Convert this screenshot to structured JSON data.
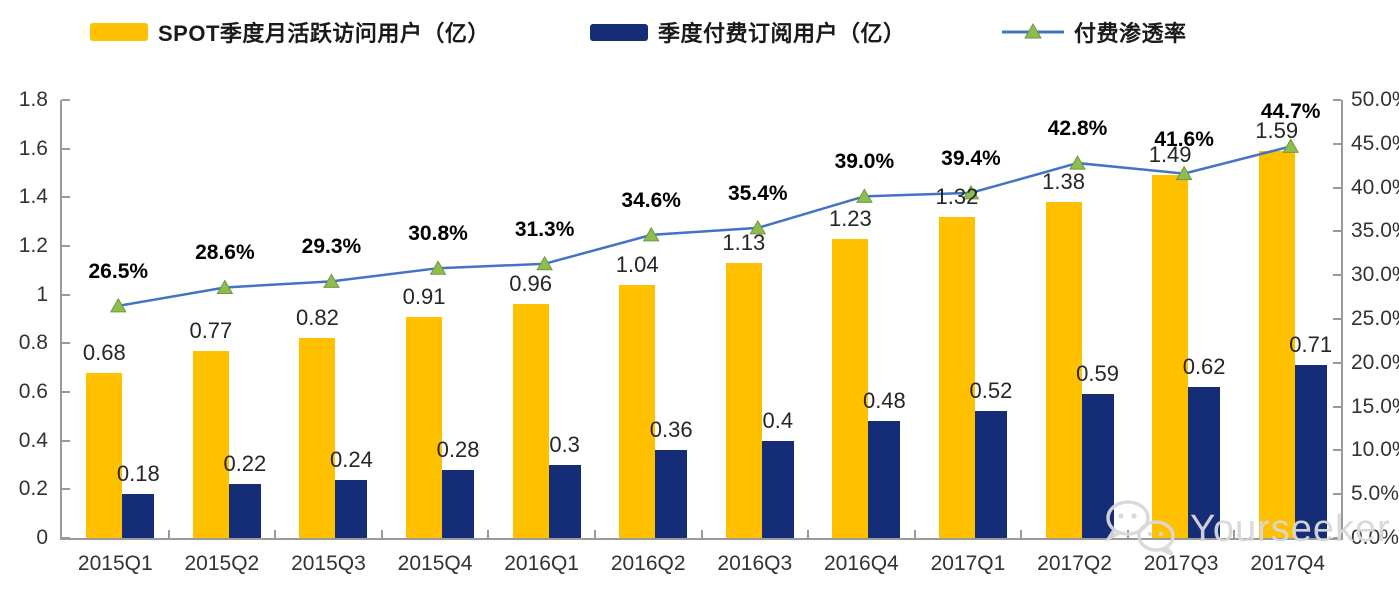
{
  "legend": [
    {
      "label": "SPOT季度月活跃访问用户（亿）",
      "type": "bar",
      "color": "#FFC000"
    },
    {
      "label": "季度付费订阅用户（亿）",
      "type": "bar",
      "color": "#152C77"
    },
    {
      "label": "付费渗透率",
      "type": "line",
      "color": "#4472C4",
      "marker_color": "#8FBC51"
    }
  ],
  "chart_data": {
    "type": "combo-bar-line",
    "title": "",
    "categories": [
      "2015Q1",
      "2015Q2",
      "2015Q3",
      "2015Q4",
      "2016Q1",
      "2016Q2",
      "2016Q3",
      "2016Q4",
      "2017Q1",
      "2017Q2",
      "2017Q3",
      "2017Q4"
    ],
    "series": [
      {
        "name": "SPOT季度月活跃访问用户（亿）",
        "type": "bar",
        "axis": "left",
        "color": "#FFC000",
        "values": [
          0.68,
          0.77,
          0.82,
          0.91,
          0.96,
          1.04,
          1.13,
          1.23,
          1.32,
          1.38,
          1.49,
          1.59
        ],
        "labels": [
          "0.68",
          "0.77",
          "0.82",
          "0.91",
          "0.96",
          "1.04",
          "1.13",
          "1.23",
          "1.32",
          "1.38",
          "1.49",
          "1.59"
        ]
      },
      {
        "name": "季度付费订阅用户（亿）",
        "type": "bar",
        "axis": "left",
        "color": "#152C77",
        "values": [
          0.18,
          0.22,
          0.24,
          0.28,
          0.3,
          0.36,
          0.4,
          0.48,
          0.52,
          0.59,
          0.62,
          0.71
        ],
        "labels": [
          "0.18",
          "0.22",
          "0.24",
          "0.28",
          "0.3",
          "0.36",
          "0.4",
          "0.48",
          "0.52",
          "0.59",
          "0.62",
          "0.71"
        ]
      },
      {
        "name": "付费渗透率",
        "type": "line",
        "axis": "right",
        "color": "#4472C4",
        "marker": "triangle",
        "marker_color": "#8FBC51",
        "values": [
          26.5,
          28.6,
          29.3,
          30.8,
          31.3,
          34.6,
          35.4,
          39.0,
          39.4,
          42.8,
          41.6,
          44.7
        ],
        "labels": [
          "26.5%",
          "28.6%",
          "29.3%",
          "30.8%",
          "31.3%",
          "34.6%",
          "35.4%",
          "39.0%",
          "39.4%",
          "42.8%",
          "41.6%",
          "44.7%"
        ]
      }
    ],
    "left_axis": {
      "min": 0,
      "max": 1.8,
      "ticks": [
        "1.8",
        "1.6",
        "1.4",
        "1.2",
        "1",
        "0.8",
        "0.6",
        "0.4",
        "0.2",
        "0"
      ]
    },
    "right_axis": {
      "min": 0,
      "max": 50,
      "ticks": [
        "50.0%",
        "45.0%",
        "40.0%",
        "35.0%",
        "30.0%",
        "25.0%",
        "20.0%",
        "15.0%",
        "10.0%",
        "5.0%",
        "0.0%"
      ]
    },
    "grid": false,
    "legend_position": "top"
  },
  "watermark": {
    "text": "Yourseeker",
    "icon": "wechat-icon"
  }
}
